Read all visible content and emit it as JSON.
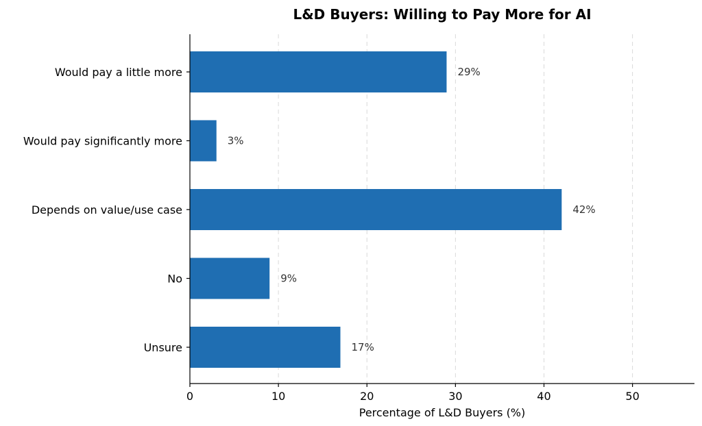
{
  "chart_data": {
    "type": "bar",
    "orientation": "horizontal",
    "title": "L&D Buyers: Willing to Pay More for AI",
    "xlabel": "Percentage of L&D Buyers (%)",
    "ylabel": "",
    "categories": [
      "Would pay a little more",
      "Would pay significantly more",
      "Depends on value/use case",
      "No",
      "Unsure"
    ],
    "values": [
      29,
      3,
      42,
      9,
      17
    ],
    "value_labels": [
      "29%",
      "3%",
      "42%",
      "9%",
      "17%"
    ],
    "xlim": [
      0,
      57
    ],
    "xticks": [
      0,
      10,
      20,
      30,
      40,
      50
    ],
    "xtick_labels": [
      "0",
      "10",
      "20",
      "30",
      "40",
      "50"
    ],
    "grid": "vertical dashed",
    "bar_color": "#1f6eb2",
    "grid_color": "#d9d9d9"
  }
}
